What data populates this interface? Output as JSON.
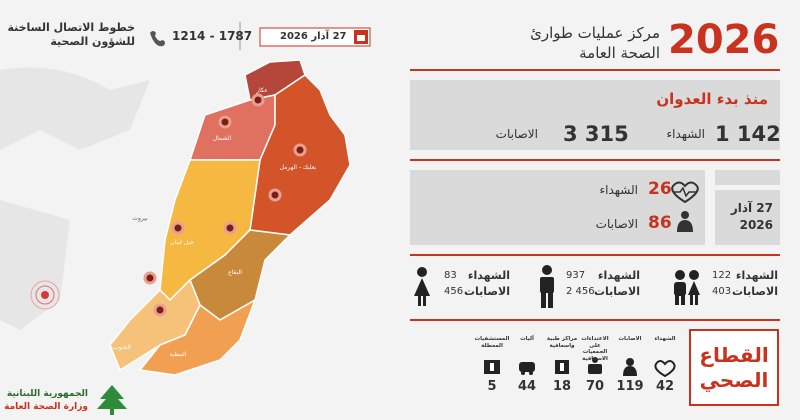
{
  "header": {
    "hotline_title": [
      "خطوط الاتصال الساخنة",
      "للشؤون الصحية"
    ],
    "hotline_numbers": "1214 - 1787",
    "date": "27 آذار 2026",
    "year": "2026",
    "title": [
      "مركز عمليات طوارئ",
      "الصحة العامة"
    ]
  },
  "total": {
    "title": "منذ بدء العدوان",
    "killed": {
      "value": "1 142",
      "label": "الشهداء"
    },
    "injured": {
      "value": "3 315",
      "label": "الاصابات"
    }
  },
  "daily": {
    "killed": {
      "value": "26",
      "label": "الشهداء"
    },
    "injured": {
      "value": "86",
      "label": "الاصابات"
    },
    "date": [
      "27 آذار",
      "2026"
    ]
  },
  "groups": [
    {
      "killed_label": "الشهداء",
      "killed": "122",
      "injured_label": "الاصابات",
      "injured": "403"
    },
    {
      "killed_label": "الشهداء",
      "killed": "937",
      "injured_label": "الاصابات",
      "injured": "2 456"
    },
    {
      "killed_label": "الشهداء",
      "killed": "83",
      "injured_label": "الاصابات",
      "injured": "456"
    }
  ],
  "health_sector": {
    "title": [
      "القطاع",
      "الصحي"
    ],
    "items": [
      {
        "label": "الشهداء",
        "value": "42"
      },
      {
        "label": "الاصابات",
        "value": "119"
      },
      {
        "label": "الاعتداءات على الجمعيات الاسعافية",
        "value": "70"
      },
      {
        "label": "مراكز طبية واسعافية",
        "value": "18"
      },
      {
        "label": "آليات",
        "value": "44"
      },
      {
        "label": "المستشفيات المعطلة",
        "value": "5"
      }
    ]
  },
  "map": {
    "regions": [
      "عكار",
      "الشمال",
      "بعلبك - الهرمل",
      "بيروت",
      "جبل لبنان",
      "البقاع",
      "الجنوب",
      "النبطية"
    ]
  },
  "logo": [
    "الجمهورية اللبنانية",
    "وزارة الصحة العامة"
  ]
}
